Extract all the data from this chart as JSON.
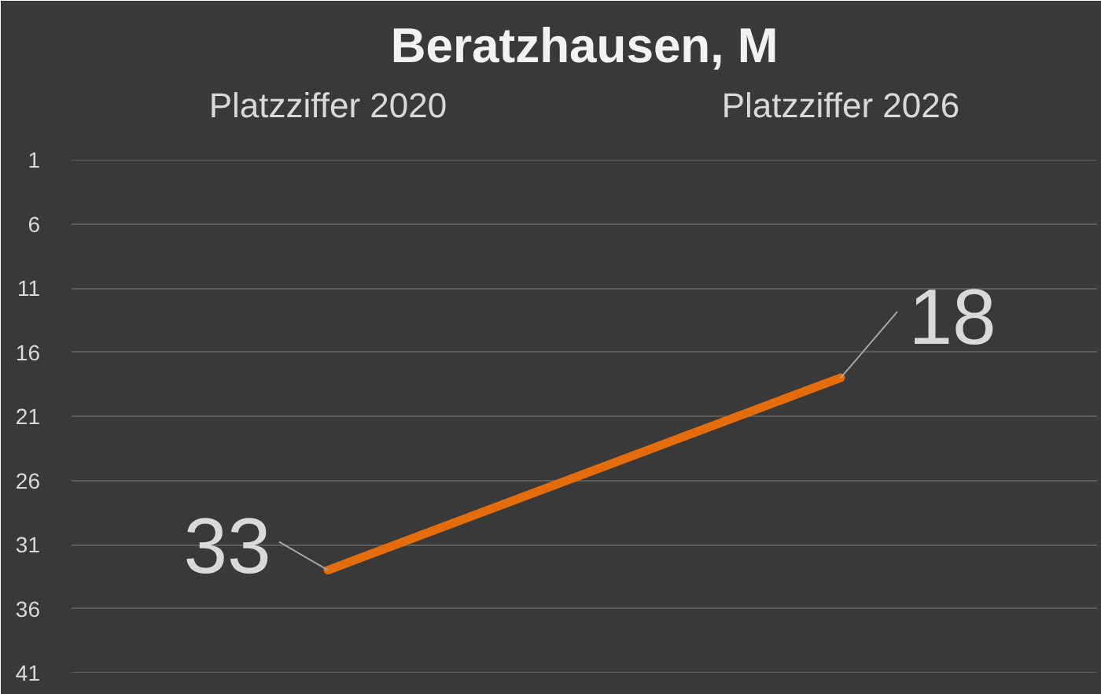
{
  "chart_data": {
    "type": "line",
    "title": "Beratzhausen, M",
    "categories": [
      "Platzziffer 2020",
      "Platzziffer 2026"
    ],
    "series": [
      {
        "color": "#e46c0a",
        "values": [
          33,
          18
        ]
      }
    ],
    "ylim": [
      41,
      1
    ],
    "yticks": [
      1,
      6,
      11,
      16,
      21,
      26,
      31,
      36,
      41
    ],
    "grid": "y",
    "data_labels": true
  }
}
